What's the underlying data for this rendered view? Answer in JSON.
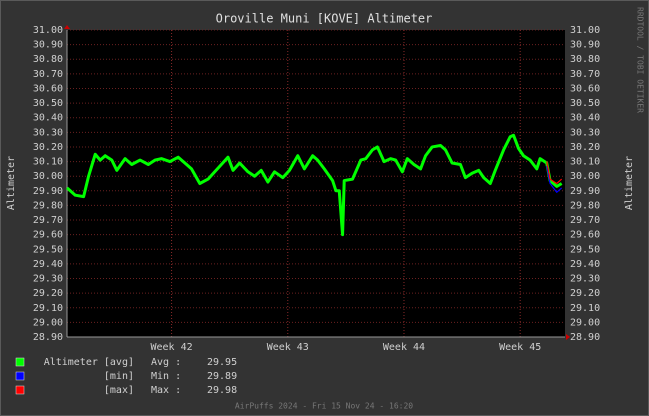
{
  "chart_data": {
    "type": "line",
    "title": "Oroville Muni [KOVE] Altimeter",
    "y_label": "Altimeter",
    "side_note": "RRDTOOL / TOBI OETIKER",
    "footer": "AirPuffs 2024 - Fri 15 Nov 24 - 16:20",
    "xlim": [
      0,
      30
    ],
    "xticks": [
      {
        "value": 6.3,
        "label": "Week 42"
      },
      {
        "value": 13.3,
        "label": "Week 43"
      },
      {
        "value": 20.3,
        "label": "Week 44"
      },
      {
        "value": 27.3,
        "label": "Week 45"
      }
    ],
    "ylim": [
      28.9,
      31.0
    ],
    "yticks": [
      {
        "value": 28.9,
        "label": "28.90"
      },
      {
        "value": 29.0,
        "label": "29.00"
      },
      {
        "value": 29.1,
        "label": "29.10"
      },
      {
        "value": 29.2,
        "label": "29.20"
      },
      {
        "value": 29.3,
        "label": "29.30"
      },
      {
        "value": 29.4,
        "label": "29.40"
      },
      {
        "value": 29.5,
        "label": "29.50"
      },
      {
        "value": 29.6,
        "label": "29.60"
      },
      {
        "value": 29.7,
        "label": "29.70"
      },
      {
        "value": 29.8,
        "label": "29.80"
      },
      {
        "value": 29.9,
        "label": "29.90"
      },
      {
        "value": 30.0,
        "label": "30.00"
      },
      {
        "value": 30.1,
        "label": "30.10"
      },
      {
        "value": 30.2,
        "label": "30.20"
      },
      {
        "value": 30.3,
        "label": "30.30"
      },
      {
        "value": 30.4,
        "label": "30.40"
      },
      {
        "value": 30.5,
        "label": "30.50"
      },
      {
        "value": 30.6,
        "label": "30.60"
      },
      {
        "value": 30.7,
        "label": "30.70"
      },
      {
        "value": 30.8,
        "label": "30.80"
      },
      {
        "value": 30.9,
        "label": "30.90"
      },
      {
        "value": 31.0,
        "label": "31.00"
      }
    ],
    "grid": true,
    "x": [
      0,
      0.5,
      1.0,
      1.3,
      1.7,
      2.0,
      2.3,
      2.7,
      3.0,
      3.5,
      3.9,
      4.4,
      4.9,
      5.3,
      5.7,
      6.2,
      6.7,
      7.1,
      7.5,
      8.0,
      8.5,
      8.9,
      9.3,
      9.7,
      10.0,
      10.4,
      10.9,
      11.3,
      11.7,
      12.1,
      12.5,
      13.0,
      13.4,
      13.9,
      14.3,
      14.8,
      15.1,
      15.5,
      16.0,
      16.2,
      16.4,
      16.6,
      16.7,
      17.2,
      17.7,
      18.0,
      18.4,
      18.7,
      19.1,
      19.5,
      19.8,
      20.2,
      20.5,
      20.9,
      21.3,
      21.6,
      22.0,
      22.5,
      22.8,
      23.2,
      23.7,
      24.0,
      24.4,
      24.8,
      25.1,
      25.5,
      25.8,
      26.3,
      26.7,
      26.9,
      27.2,
      27.5,
      27.9,
      28.3,
      28.5,
      28.9,
      29.1,
      29.5,
      29.8
    ],
    "series": [
      {
        "name": "Altimeter [avg]",
        "color": "#00ff00",
        "stat_label": "Avg :",
        "stat": 29.95,
        "values": [
          29.92,
          29.87,
          29.86,
          30.0,
          30.15,
          30.11,
          30.14,
          30.11,
          30.04,
          30.12,
          30.08,
          30.11,
          30.08,
          30.11,
          30.12,
          30.1,
          30.13,
          30.09,
          30.05,
          29.95,
          29.98,
          30.03,
          30.08,
          30.13,
          30.04,
          30.09,
          30.03,
          30.0,
          30.04,
          29.96,
          30.03,
          29.99,
          30.04,
          30.14,
          30.05,
          30.14,
          30.11,
          30.05,
          29.97,
          29.9,
          29.9,
          29.6,
          29.97,
          29.98,
          30.11,
          30.12,
          30.18,
          30.2,
          30.1,
          30.12,
          30.11,
          30.03,
          30.12,
          30.08,
          30.05,
          30.14,
          30.2,
          30.21,
          30.18,
          30.09,
          30.08,
          29.99,
          30.02,
          30.04,
          29.99,
          29.95,
          30.04,
          30.18,
          30.27,
          30.28,
          30.19,
          30.14,
          30.11,
          30.05,
          30.12,
          30.09,
          29.97,
          29.93,
          29.95
        ]
      },
      {
        "name": "[min]",
        "color": "#0000ff",
        "stat_label": "Min :",
        "stat": 29.89,
        "values": [
          null,
          null,
          null,
          null,
          null,
          null,
          null,
          null,
          null,
          null,
          null,
          null,
          null,
          null,
          null,
          null,
          null,
          null,
          null,
          null,
          null,
          null,
          null,
          null,
          null,
          null,
          null,
          null,
          null,
          null,
          null,
          null,
          null,
          null,
          null,
          null,
          null,
          null,
          null,
          null,
          null,
          null,
          null,
          null,
          null,
          null,
          null,
          null,
          null,
          null,
          null,
          null,
          null,
          null,
          null,
          null,
          null,
          null,
          null,
          null,
          null,
          null,
          null,
          null,
          null,
          null,
          null,
          null,
          null,
          null,
          null,
          null,
          null,
          null,
          null,
          30.07,
          29.95,
          29.89,
          29.92
        ]
      },
      {
        "name": "[max]",
        "color": "#ff0000",
        "stat_label": "Max :",
        "stat": 29.98,
        "values": [
          null,
          null,
          null,
          null,
          null,
          null,
          null,
          null,
          null,
          null,
          null,
          null,
          null,
          null,
          null,
          null,
          null,
          null,
          null,
          null,
          null,
          null,
          null,
          null,
          null,
          null,
          null,
          null,
          null,
          null,
          null,
          null,
          null,
          null,
          null,
          null,
          null,
          null,
          null,
          null,
          null,
          null,
          null,
          null,
          null,
          null,
          null,
          null,
          null,
          null,
          null,
          null,
          null,
          null,
          null,
          null,
          null,
          null,
          null,
          null,
          null,
          null,
          null,
          null,
          null,
          null,
          null,
          null,
          null,
          null,
          null,
          null,
          null,
          null,
          null,
          30.1,
          29.98,
          29.95,
          29.98
        ]
      }
    ]
  }
}
